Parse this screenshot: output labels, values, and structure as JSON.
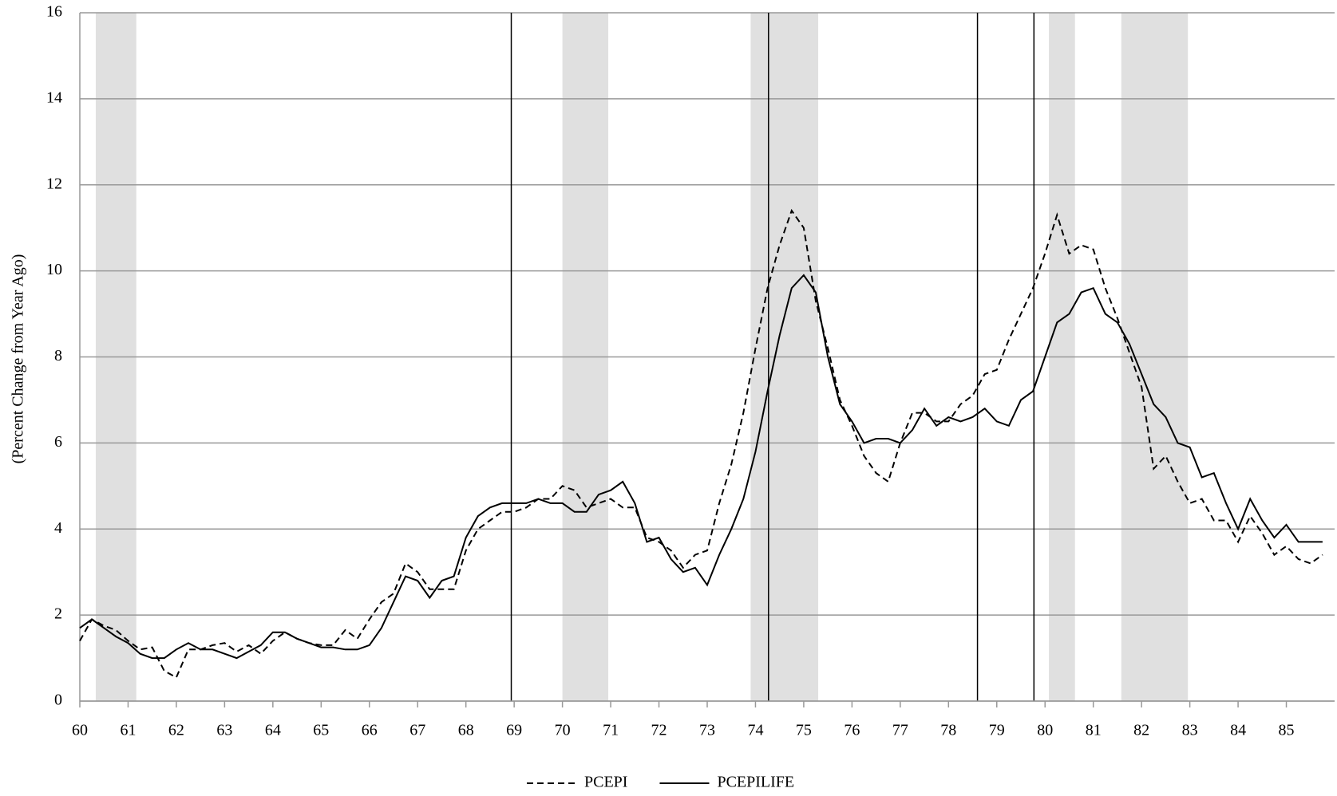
{
  "chart_data": {
    "type": "line",
    "y_label": "(Percent Change from Year Ago)",
    "x": [
      60,
      60.25,
      60.5,
      60.75,
      61,
      61.25,
      61.5,
      61.75,
      62,
      62.25,
      62.5,
      62.75,
      63,
      63.25,
      63.5,
      63.75,
      64,
      64.25,
      64.5,
      64.75,
      65,
      65.25,
      65.5,
      65.75,
      66,
      66.25,
      66.5,
      66.75,
      67,
      67.25,
      67.5,
      67.75,
      68,
      68.25,
      68.5,
      68.75,
      69,
      69.25,
      69.5,
      69.75,
      70,
      70.25,
      70.5,
      70.75,
      71,
      71.25,
      71.5,
      71.75,
      72,
      72.25,
      72.5,
      72.75,
      73,
      73.25,
      73.5,
      73.75,
      74,
      74.25,
      74.5,
      74.75,
      75,
      75.25,
      75.5,
      75.75,
      76,
      76.25,
      76.5,
      76.75,
      77,
      77.25,
      77.5,
      77.75,
      78,
      78.25,
      78.5,
      78.75,
      79,
      79.25,
      79.5,
      79.75,
      80,
      80.25,
      80.5,
      80.75,
      81,
      81.25,
      81.5,
      81.75,
      82,
      82.25,
      82.5,
      82.75,
      83,
      83.25,
      83.5,
      83.75,
      84,
      84.25,
      84.5,
      84.75,
      85,
      85.25,
      85.5,
      85.75
    ],
    "series": [
      {
        "name": "PCEPI",
        "color": "#000000",
        "dashed": true,
        "values": [
          1.4,
          1.9,
          1.75,
          1.65,
          1.4,
          1.2,
          1.25,
          0.7,
          0.55,
          1.2,
          1.2,
          1.3,
          1.35,
          1.15,
          1.3,
          1.1,
          1.4,
          1.6,
          1.45,
          1.35,
          1.3,
          1.3,
          1.65,
          1.45,
          1.9,
          2.3,
          2.5,
          3.2,
          3.0,
          2.6,
          2.6,
          2.6,
          3.5,
          4.0,
          4.2,
          4.4,
          4.4,
          4.5,
          4.7,
          4.7,
          5.0,
          4.9,
          4.5,
          4.6,
          4.7,
          4.5,
          4.5,
          3.8,
          3.7,
          3.5,
          3.1,
          3.4,
          3.5,
          4.6,
          5.5,
          6.7,
          8.2,
          9.6,
          10.6,
          11.4,
          11.0,
          9.3,
          8.2,
          7.0,
          6.4,
          5.7,
          5.3,
          5.1,
          6.0,
          6.7,
          6.7,
          6.5,
          6.5,
          6.9,
          7.1,
          7.6,
          7.7,
          8.4,
          9.0,
          9.6,
          10.4,
          11.3,
          10.4,
          10.6,
          10.5,
          9.6,
          8.9,
          8.1,
          7.3,
          5.4,
          5.7,
          5.1,
          4.6,
          4.7,
          4.2,
          4.2,
          3.7,
          4.3,
          3.9,
          3.4,
          3.6,
          3.3,
          3.2,
          3.4
        ]
      },
      {
        "name": "PCEPILIFE",
        "color": "#000000",
        "dashed": false,
        "values": [
          1.7,
          1.9,
          1.7,
          1.5,
          1.35,
          1.1,
          1.0,
          1.0,
          1.2,
          1.35,
          1.2,
          1.2,
          1.1,
          1.0,
          1.15,
          1.3,
          1.6,
          1.6,
          1.45,
          1.35,
          1.25,
          1.25,
          1.2,
          1.2,
          1.3,
          1.7,
          2.3,
          2.9,
          2.8,
          2.4,
          2.8,
          2.9,
          3.8,
          4.3,
          4.5,
          4.6,
          4.6,
          4.6,
          4.7,
          4.6,
          4.6,
          4.4,
          4.4,
          4.8,
          4.9,
          5.1,
          4.6,
          3.7,
          3.8,
          3.3,
          3.0,
          3.1,
          2.7,
          3.4,
          4.0,
          4.7,
          5.8,
          7.2,
          8.5,
          9.6,
          9.9,
          9.5,
          8.0,
          6.9,
          6.5,
          6.0,
          6.1,
          6.1,
          6.0,
          6.3,
          6.8,
          6.4,
          6.6,
          6.5,
          6.6,
          6.8,
          6.5,
          6.4,
          7.0,
          7.2,
          8.0,
          8.8,
          9.0,
          9.5,
          9.6,
          9.0,
          8.8,
          8.3,
          7.6,
          6.9,
          6.6,
          6.0,
          5.9,
          5.2,
          5.3,
          4.6,
          4.0,
          4.7,
          4.2,
          3.8,
          4.1,
          3.7,
          3.7,
          3.7
        ]
      }
    ],
    "shaded_ranges": [
      [
        60.33,
        61.17
      ],
      [
        70.0,
        70.95
      ],
      [
        73.9,
        75.3
      ],
      [
        80.08,
        80.62
      ],
      [
        81.58,
        82.96
      ]
    ],
    "shade_color": "#e0e0e0",
    "vlines": [
      68.94,
      74.27,
      78.6,
      79.77
    ],
    "xlim": [
      60,
      86
    ],
    "xticks": [
      60,
      61,
      62,
      63,
      64,
      65,
      66,
      67,
      68,
      69,
      70,
      71,
      72,
      73,
      74,
      75,
      76,
      77,
      78,
      79,
      80,
      81,
      82,
      83,
      84,
      85
    ],
    "ylim": [
      0,
      16
    ],
    "yticks": [
      0,
      2,
      4,
      6,
      8,
      10,
      12,
      14,
      16
    ],
    "grid": true,
    "legend": "bottom"
  }
}
